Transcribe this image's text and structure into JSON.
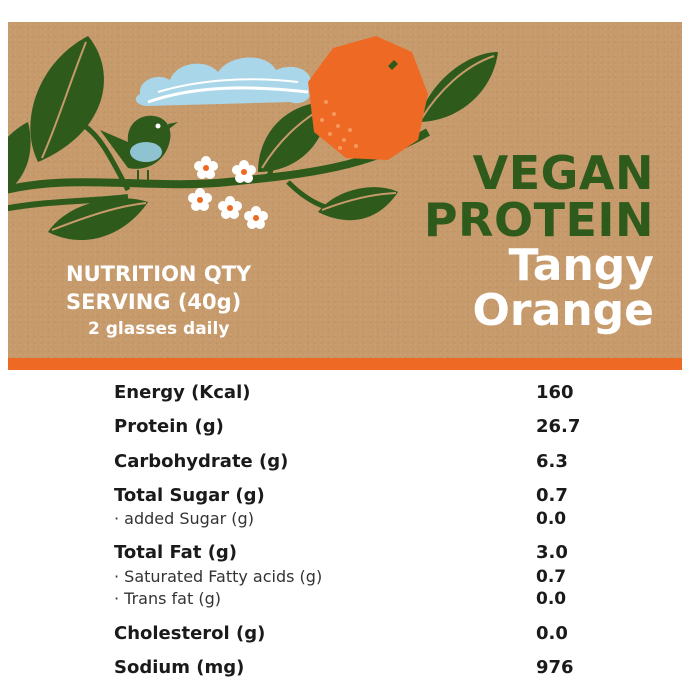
{
  "title": {
    "line1": "VEGAN",
    "line2": "PROTEIN",
    "line3": "Tangy",
    "line4": "Orange"
  },
  "serving": {
    "line1": "NUTRITION QTY",
    "line2": "SERVING (40g)",
    "line3": "2 glasses daily"
  },
  "nutrition": [
    {
      "name": "Energy (Kcal)",
      "value": "160"
    },
    {
      "name": "Protein (g)",
      "value": "26.7"
    },
    {
      "name": "Carbohydrate (g)",
      "value": "6.3"
    },
    {
      "name": "Total Sugar (g)",
      "value": "0.7"
    },
    {
      "name": "· added Sugar (g)",
      "value": "0.0"
    },
    {
      "name": "Total Fat (g)",
      "value": "3.0"
    },
    {
      "name": "· Saturated Fatty acids (g)",
      "value": "0.7"
    },
    {
      "name": "· Trans fat (g)",
      "value": "0.0"
    },
    {
      "name": "Cholesterol (g)",
      "value": "0.0"
    },
    {
      "name": "Sodium (mg)",
      "value": "976"
    }
  ],
  "colors": {
    "kraft": "#c69a6b",
    "green": "#2e5a1c",
    "orange": "#ee6a24"
  },
  "icons": [
    "leaf-icon",
    "bird-icon",
    "orange-fruit-icon",
    "cloud-icon",
    "blossom-icon"
  ]
}
